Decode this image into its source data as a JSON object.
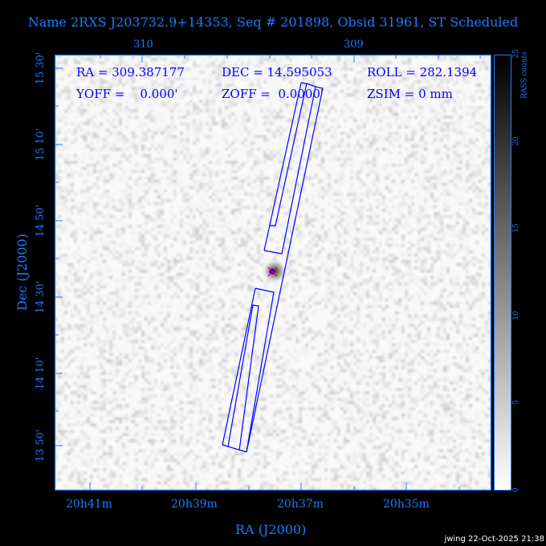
{
  "title": "Name 2RXS J203732.9+14353, Seq # 201898, Obsid 31961, ST Scheduled",
  "info": {
    "ra": "RA = 309.387177",
    "dec": "DEC = 14.595053",
    "roll": "ROLL = 282.1394",
    "yoff": "YOFF =    0.000'",
    "zoff": "ZOFF =  0.0000'",
    "zsim": "ZSIM = 0 mm"
  },
  "top_axis": {
    "ticks": [
      "310",
      "309"
    ]
  },
  "bottom_axis": {
    "ticks": [
      "20h41m",
      "20h39m",
      "20h37m",
      "20h35m"
    ],
    "label": "RA (J2000)"
  },
  "left_axis": {
    "ticks": [
      "15 30'",
      "15 10'",
      "14 50'",
      "14 30'",
      "14 10'",
      "13 50'"
    ],
    "label": "Dec (J2000)"
  },
  "colorbar": {
    "label": "RASS counts",
    "ticks": [
      "0",
      "5",
      "10",
      "15",
      "20",
      "25"
    ],
    "range": [
      0,
      25
    ]
  },
  "stamp": "jwing 22-Oct-2025 21:38",
  "colors": {
    "axis": "#1a7cff",
    "overlay": "#0000ff",
    "target": "#ff0000"
  }
}
